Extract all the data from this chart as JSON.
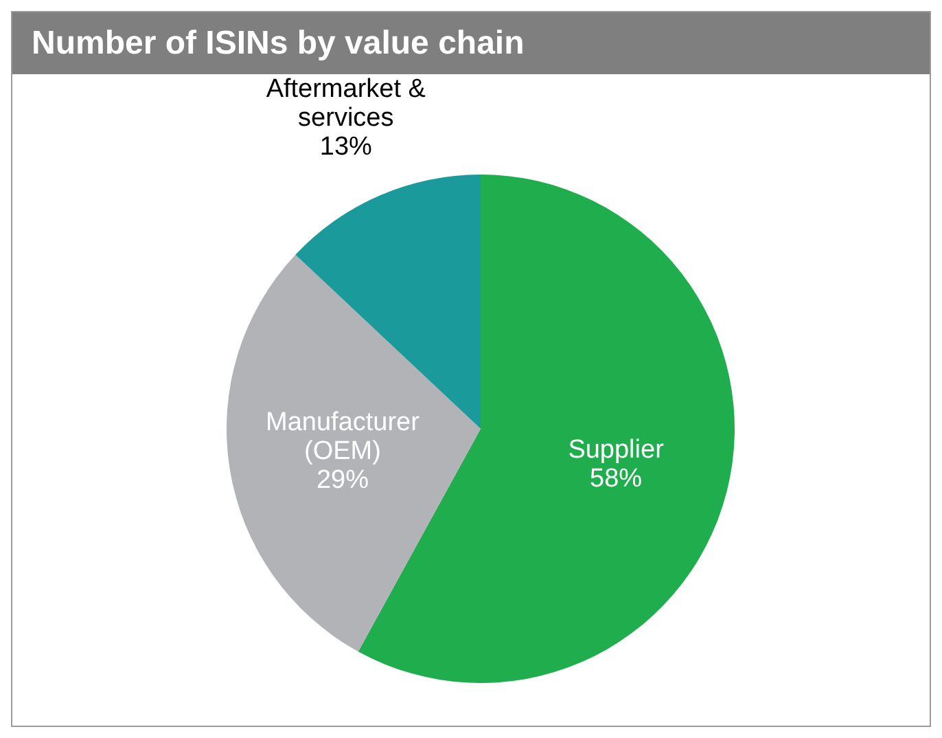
{
  "chart_data": {
    "type": "pie",
    "title": "Number of ISINs by value chain",
    "categories": [
      "Supplier",
      "Manufacturer (OEM)",
      "Aftermarket & services"
    ],
    "values": [
      58,
      29,
      13
    ],
    "colors": [
      "#1fad4e",
      "#b2b3b6",
      "#1a9a9a"
    ],
    "value_labels": [
      "58%",
      "29%",
      "13%"
    ]
  }
}
